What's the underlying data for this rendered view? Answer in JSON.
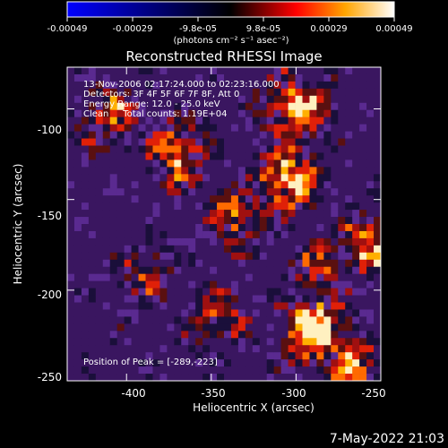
{
  "colorbar": {
    "tick_labels": [
      "-0.00049",
      "-0.00029",
      "-9.8e-05",
      "9.8e-05",
      "0.00029",
      "0.00049"
    ],
    "units": "(photons cm⁻² s⁻¹ asec⁻²)",
    "colors": [
      "#0000ff",
      "#000000",
      "#ff0000",
      "#ffa500",
      "#ffffff"
    ]
  },
  "chart_data": {
    "type": "heatmap",
    "title": "Reconstructed RHESSI Image",
    "xlabel": "Heliocentric X (arcsec)",
    "ylabel": "Heliocentric Y (arcsec)",
    "xlim": [
      -435,
      -250
    ],
    "ylim": [
      -250,
      -77
    ],
    "x_ticks": [
      -400,
      -350,
      -300,
      -250
    ],
    "y_ticks": [
      -100,
      -150,
      -200,
      -250
    ],
    "x_tick_labels": [
      "-400",
      "-350",
      "-300",
      "-250"
    ],
    "y_tick_labels": [
      "-100",
      "-150",
      "-200",
      "-250"
    ],
    "hotspots": [
      {
        "x": -289,
        "y": -223,
        "value": 1.0
      },
      {
        "x": -305,
        "y": -138,
        "value": 0.85
      },
      {
        "x": -300,
        "y": -100,
        "value": 0.8
      },
      {
        "x": -370,
        "y": -125,
        "value": 0.7
      },
      {
        "x": -410,
        "y": -105,
        "value": 0.6
      },
      {
        "x": -255,
        "y": -175,
        "value": 0.7
      },
      {
        "x": -335,
        "y": -160,
        "value": 0.6
      },
      {
        "x": -265,
        "y": -245,
        "value": 0.7
      },
      {
        "x": -345,
        "y": -215,
        "value": 0.5
      },
      {
        "x": -390,
        "y": -190,
        "value": 0.45
      },
      {
        "x": -285,
        "y": -190,
        "value": 0.55
      }
    ],
    "annotations": [
      "13-Nov-2006 02:17:24.000 to 02:23:16.000",
      "Detectors: 3F 4F 5F 6F 7F 8F, Att 0",
      "Energy Range: 12.0 - 25.0 keV",
      "Clean     Total counts: 1.19E+04"
    ],
    "peak_label": "Position of Peak = [-289,-223]"
  },
  "footer": {
    "date": "7-May-2022 21:03"
  }
}
